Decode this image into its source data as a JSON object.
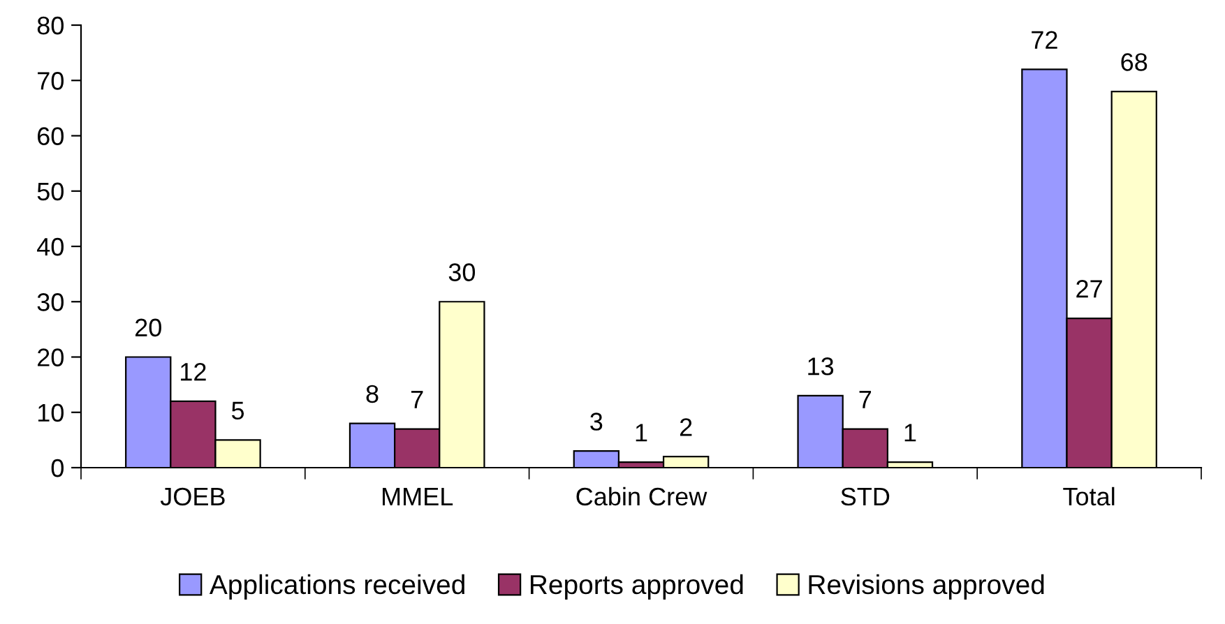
{
  "chart_data": {
    "type": "bar",
    "categories": [
      "JOEB",
      "MMEL",
      "Cabin Crew",
      "STD",
      "Total"
    ],
    "series": [
      {
        "name": "Applications received",
        "color": "#9999ff",
        "values": [
          20,
          8,
          3,
          13,
          72
        ]
      },
      {
        "name": "Reports approved",
        "color": "#993366",
        "values": [
          12,
          7,
          1,
          7,
          27
        ]
      },
      {
        "name": "Revisions approved",
        "color": "#ffffcc",
        "values": [
          5,
          30,
          2,
          1,
          68
        ]
      }
    ],
    "ylim": [
      0,
      80
    ],
    "yticks": [
      0,
      10,
      20,
      30,
      40,
      50,
      60,
      70,
      80
    ],
    "grid": false,
    "legend": "bottom",
    "data_labels": true
  }
}
